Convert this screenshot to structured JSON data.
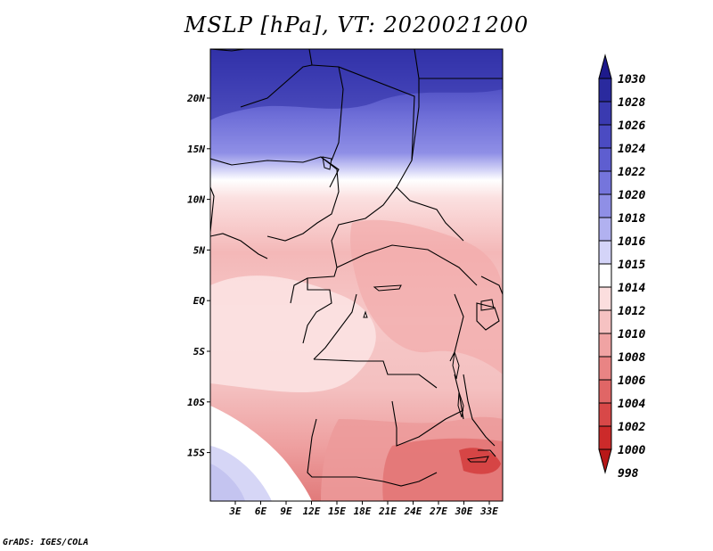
{
  "title": "MSLP [hPa], VT: 2020021200",
  "credit": "GrADS: IGES/COLA",
  "lat_labels": [
    "20N",
    "15N",
    "10N",
    "5N",
    "EQ",
    "5S",
    "10S",
    "15S"
  ],
  "lon_labels": [
    "3E",
    "6E",
    "9E",
    "12E",
    "15E",
    "18E",
    "21E",
    "24E",
    "27E",
    "30E",
    "33E"
  ],
  "colorbar": {
    "levels": [
      "1030",
      "1028",
      "1026",
      "1024",
      "1022",
      "1020",
      "1018",
      "1016",
      "1015",
      "1014",
      "1012",
      "1010",
      "1008",
      "1006",
      "1004",
      "1002",
      "1000",
      "998"
    ],
    "colors": [
      "#1e1a8c",
      "#2a2a9e",
      "#3a3ab0",
      "#4b4bc2",
      "#5e5ed0",
      "#7575dc",
      "#8f8fe6",
      "#b1b1f0",
      "#d4d4f8",
      "#ffffff",
      "#fbdede",
      "#f6c2c2",
      "#f0a3a3",
      "#e98484",
      "#e06666",
      "#d84848",
      "#cc2a2a",
      "#b81818"
    ]
  }
}
